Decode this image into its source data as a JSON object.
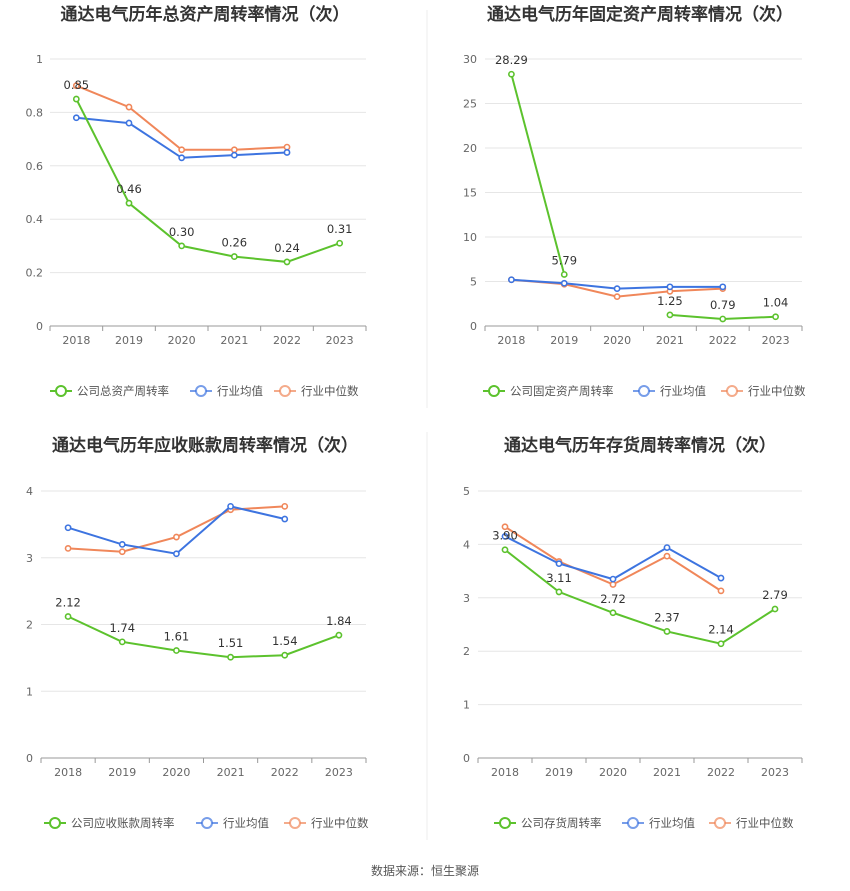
{
  "source_label": "数据来源：恒生聚源",
  "colors": {
    "company": "#5cc22d",
    "average": "#3d74e0",
    "median": "#f0875a"
  },
  "chart_data": [
    {
      "type": "line",
      "title": "通达电气历年总资产周转率情况（次）",
      "categories": [
        "2018",
        "2019",
        "2020",
        "2021",
        "2022",
        "2023"
      ],
      "ylim": [
        0,
        1
      ],
      "yticks": [
        "0",
        "0.2",
        "0.4",
        "0.6",
        "0.8",
        "1"
      ],
      "series": [
        {
          "name": "公司总资产周转率",
          "role": "company",
          "values": [
            0.85,
            0.46,
            0.3,
            0.26,
            0.24,
            0.31
          ],
          "labels": [
            "0.85",
            "0.46",
            "0.30",
            "0.26",
            "0.24",
            "0.31"
          ]
        },
        {
          "name": "行业均值",
          "role": "average",
          "values": [
            0.78,
            0.76,
            0.63,
            0.64,
            0.65,
            null
          ]
        },
        {
          "name": "行业中位数",
          "role": "median",
          "values": [
            0.9,
            0.82,
            0.66,
            0.66,
            0.67,
            null
          ]
        }
      ]
    },
    {
      "type": "line",
      "title": "通达电气历年固定资产周转率情况（次）",
      "categories": [
        "2018",
        "2019",
        "2020",
        "2021",
        "2022",
        "2023"
      ],
      "ylim": [
        0,
        30
      ],
      "yticks": [
        "0",
        "5",
        "10",
        "15",
        "20",
        "25",
        "30"
      ],
      "series": [
        {
          "name": "公司固定资产周转率",
          "role": "company",
          "values": [
            28.29,
            5.79,
            null,
            1.25,
            0.79,
            1.04
          ],
          "labels": [
            "28.29",
            "5.79",
            "",
            "1.25",
            "0.79",
            "1.04"
          ]
        },
        {
          "name": "行业均值",
          "role": "average",
          "values": [
            5.2,
            4.8,
            4.2,
            4.4,
            4.4,
            null
          ]
        },
        {
          "name": "行业中位数",
          "role": "median",
          "values": [
            5.2,
            4.7,
            3.3,
            3.9,
            4.2,
            null
          ]
        }
      ]
    },
    {
      "type": "line",
      "title": "通达电气历年应收账款周转率情况（次）",
      "categories": [
        "2018",
        "2019",
        "2020",
        "2021",
        "2022",
        "2023"
      ],
      "ylim": [
        0,
        4
      ],
      "yticks": [
        "0",
        "1",
        "2",
        "3",
        "4"
      ],
      "series": [
        {
          "name": "公司应收账款周转率",
          "role": "company",
          "values": [
            2.12,
            1.74,
            1.61,
            1.51,
            1.54,
            1.84
          ],
          "labels": [
            "2.12",
            "1.74",
            "1.61",
            "1.51",
            "1.54",
            "1.84"
          ]
        },
        {
          "name": "行业均值",
          "role": "average",
          "values": [
            3.45,
            3.2,
            3.06,
            3.77,
            3.58,
            null
          ]
        },
        {
          "name": "行业中位数",
          "role": "median",
          "values": [
            3.14,
            3.09,
            3.31,
            3.72,
            3.77,
            null
          ]
        }
      ]
    },
    {
      "type": "line",
      "title": "通达电气历年存货周转率情况（次）",
      "categories": [
        "2018",
        "2019",
        "2020",
        "2021",
        "2022",
        "2023"
      ],
      "ylim": [
        0,
        5
      ],
      "yticks": [
        "0",
        "1",
        "2",
        "3",
        "4",
        "5"
      ],
      "series": [
        {
          "name": "公司存货周转率",
          "role": "company",
          "values": [
            3.9,
            3.11,
            2.72,
            2.37,
            2.14,
            2.79
          ],
          "labels": [
            "3.90",
            "3.11",
            "2.72",
            "2.37",
            "2.14",
            "2.79"
          ]
        },
        {
          "name": "行业均值",
          "role": "average",
          "values": [
            4.15,
            3.64,
            3.35,
            3.94,
            3.37,
            null
          ]
        },
        {
          "name": "行业中位数",
          "role": "median",
          "values": [
            4.33,
            3.68,
            3.25,
            3.78,
            3.13,
            null
          ]
        }
      ]
    }
  ]
}
